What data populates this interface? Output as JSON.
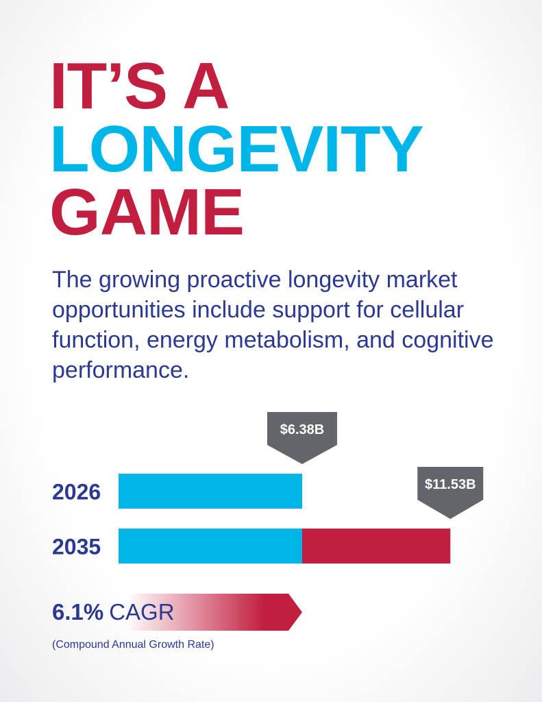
{
  "headline": {
    "lines": [
      {
        "text": "IT’S A",
        "color": "#c21e3f"
      },
      {
        "text": "LONGEVITY",
        "color": "#00b5e8"
      },
      {
        "text": "GAME",
        "color": "#c21e3f"
      }
    ]
  },
  "subtitle": "The growing proactive longevity market opportunities include support for cellular function, energy metabolism, and cognitive performance.",
  "chart_data": {
    "type": "bar",
    "orientation": "horizontal",
    "categories": [
      "2026",
      "2035"
    ],
    "values": [
      6.38,
      11.53
    ],
    "value_labels": [
      "$6.38B",
      "$11.53B"
    ],
    "unit": "USD billions",
    "title": "",
    "xlabel": "",
    "ylabel": "",
    "colors": {
      "base": "#00b5e8",
      "growth": "#c21e3f",
      "callout": "#63656a",
      "category_label": "#2b3990"
    }
  },
  "cagr": {
    "value": "6.1%",
    "label": "CAGR",
    "note": "(Compound Annual Growth Rate)",
    "gradient_end_color": "#c21e3f"
  }
}
